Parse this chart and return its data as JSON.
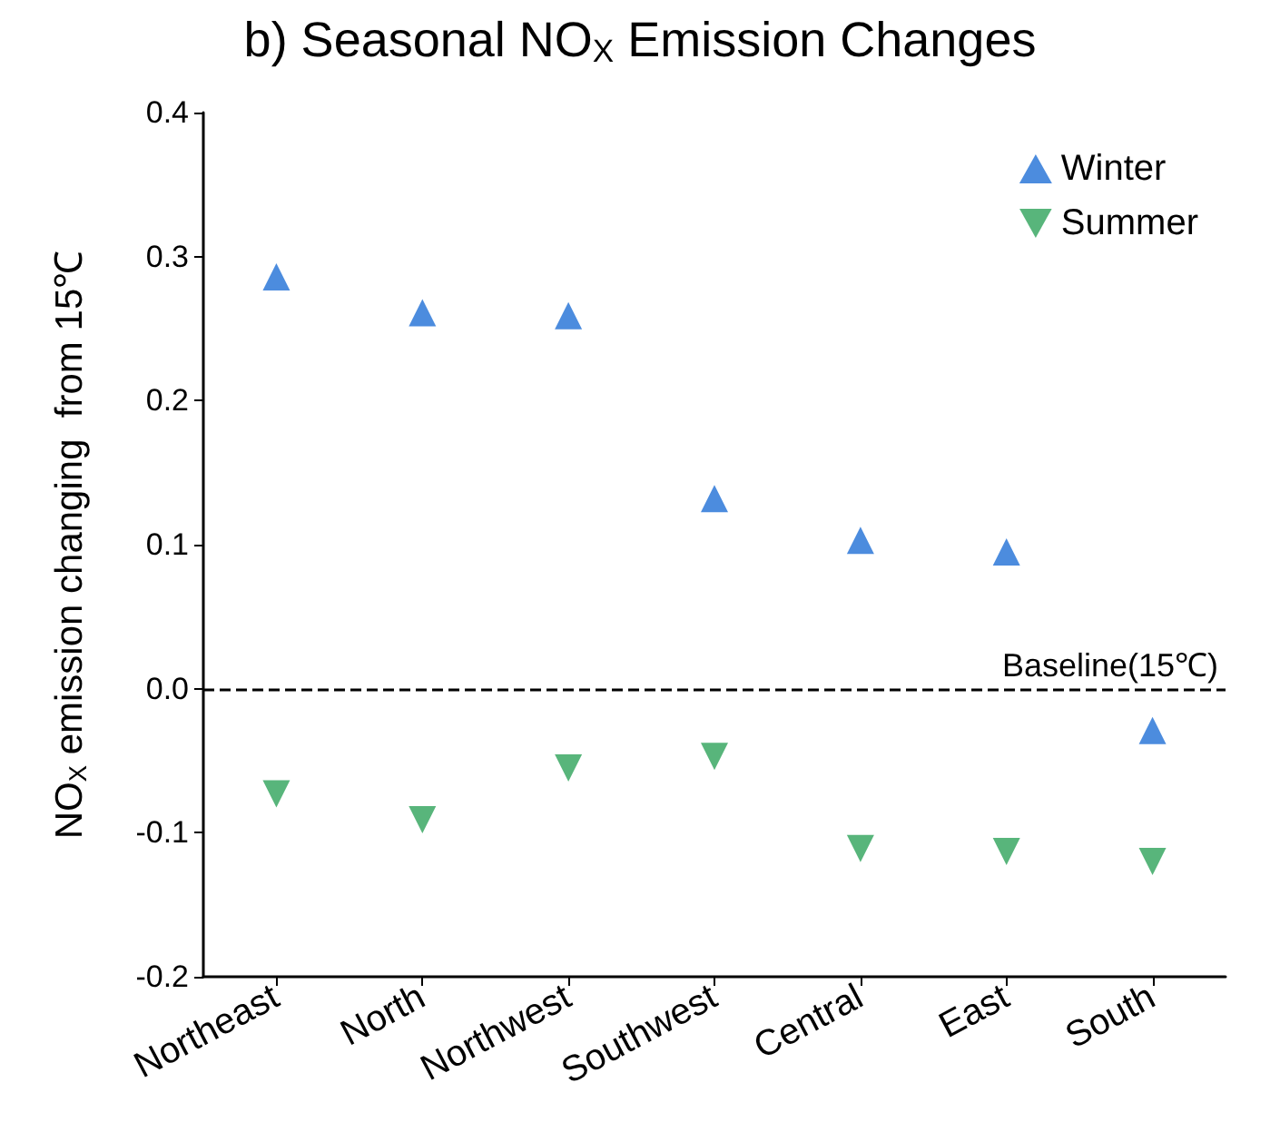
{
  "chart_data": {
    "type": "scatter",
    "title": "b) Seasonal NO$_{X}$ Emission Changes",
    "ylabel": "NO$_{X}$ emission changing  from 15℃",
    "categories": [
      "Northeast",
      "North",
      "Northwest",
      "Southwest",
      "Central",
      "East",
      "South"
    ],
    "series": [
      {
        "name": "Winter",
        "color": "#1f6fd6",
        "marker": "triangle",
        "values": [
          0.286,
          0.261,
          0.259,
          0.132,
          0.103,
          0.095,
          -0.029
        ]
      },
      {
        "name": "Summer",
        "color": "#2ea35a",
        "marker": "triangle-down",
        "values": [
          -0.073,
          -0.091,
          -0.055,
          -0.047,
          -0.111,
          -0.113,
          -0.12
        ]
      }
    ],
    "ylim": [
      -0.2,
      0.4
    ],
    "yticks": [
      -0.2,
      -0.1,
      {
        "value": 0,
        "label": "0.0"
      },
      0.1,
      0.2,
      0.3,
      0.4
    ],
    "ref_lines": [
      {
        "axis": "y",
        "value": 0,
        "label": "Baseline(15℃)",
        "color": "#000000",
        "line_style": "dashed"
      }
    ],
    "legend": "top right",
    "grid": false
  }
}
